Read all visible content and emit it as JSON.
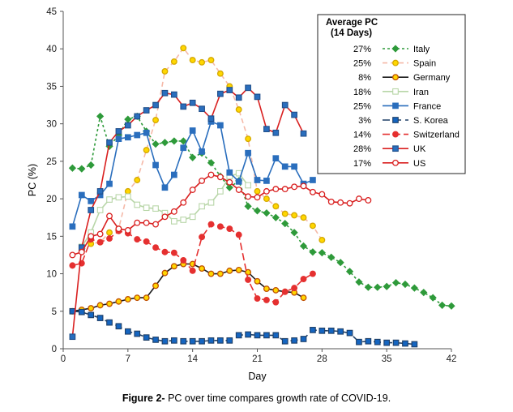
{
  "caption": {
    "label": "Figure 2-",
    "text": " PC over time compares growth rate of COVID-19."
  },
  "chart_data": {
    "type": "line",
    "xlabel": "Day",
    "ylabel": "PC (%)",
    "xlim": [
      0,
      42
    ],
    "ylim": [
      0,
      45
    ],
    "xticks": [
      0,
      7,
      14,
      21,
      28,
      35,
      42
    ],
    "yticks": [
      0,
      5,
      10,
      15,
      20,
      25,
      30,
      35,
      40,
      45
    ],
    "legend": {
      "title_line1": "Average PC",
      "title_line2": "(14 Days)",
      "position": "top-right"
    },
    "series": [
      {
        "name": "Italy",
        "avg": "27%",
        "color": "#2e9a3a",
        "fill": "#2e9a3a",
        "dash": "3,3",
        "marker": "diamond",
        "faded": false,
        "x": [
          1,
          2,
          3,
          4,
          5,
          6,
          7,
          8,
          9,
          10,
          11,
          12,
          13,
          14,
          15,
          16,
          17,
          18,
          19,
          20,
          21,
          22,
          23,
          24,
          25,
          26,
          27,
          28,
          29,
          30,
          31,
          32,
          33,
          34,
          35,
          36,
          37,
          38,
          39,
          40,
          41,
          42
        ],
        "y": [
          24.1,
          24.0,
          24.5,
          31.0,
          27.0,
          28.5,
          30.6,
          31.0,
          29.0,
          27.3,
          27.5,
          27.7,
          27.7,
          25.5,
          26.1,
          24.8,
          23.0,
          21.5,
          22.4,
          19.0,
          18.4,
          18.1,
          17.5,
          16.7,
          15.5,
          13.7,
          12.9,
          12.8,
          12.2,
          11.5,
          10.3,
          8.9,
          8.2,
          8.2,
          8.3,
          8.8,
          8.6,
          8.1,
          7.5,
          6.8,
          5.8,
          5.7
        ]
      },
      {
        "name": "Spain",
        "avg": "25%",
        "color": "#f5b9a8",
        "fill": "#ffd700",
        "dash": "6,4",
        "marker": "circle",
        "faded": false,
        "x": [
          2,
          3,
          4,
          5,
          6,
          7,
          8,
          9,
          10,
          11,
          12,
          13,
          14,
          15,
          16,
          17,
          18,
          19,
          20,
          21,
          22,
          23,
          24,
          25,
          26,
          27,
          28
        ],
        "y": [
          13.0,
          14.0,
          14.2,
          15.5,
          16.0,
          21.0,
          22.5,
          26.5,
          30.5,
          37.0,
          38.3,
          40.1,
          38.5,
          38.2,
          38.5,
          36.7,
          35.0,
          31.9,
          28.0,
          21.0,
          20.0,
          19.0,
          18.0,
          17.8,
          17.5,
          16.4,
          14.5
        ]
      },
      {
        "name": "Germany",
        "avg": "8%",
        "color": "#1a1a1a",
        "fill": "#ffd700",
        "dash": "",
        "marker": "circle",
        "faded": false,
        "x": [
          1,
          2,
          3,
          4,
          5,
          6,
          7,
          8,
          9,
          10,
          11,
          12,
          13,
          14,
          15,
          16,
          17,
          18,
          19,
          20,
          21,
          22,
          23,
          24,
          25,
          26
        ],
        "y": [
          5.0,
          5.2,
          5.4,
          5.8,
          6.0,
          6.3,
          6.6,
          6.8,
          6.8,
          8.4,
          10.1,
          11.0,
          11.3,
          11.3,
          10.7,
          10.0,
          10.0,
          10.4,
          10.5,
          10.2,
          9.0,
          8.0,
          7.8,
          7.6,
          7.5,
          6.8
        ]
      },
      {
        "name": "Iran",
        "avg": "18%",
        "color": "#b8d6a8",
        "fill": "#ffffff",
        "dash": "",
        "marker": "square",
        "faded": true,
        "x": [
          2,
          3,
          4,
          5,
          6,
          7,
          8,
          9,
          10,
          11,
          12,
          13,
          14,
          15,
          16,
          17,
          18,
          19,
          20
        ],
        "y": [
          13.6,
          15.5,
          18.5,
          19.9,
          20.2,
          20.3,
          19.2,
          18.8,
          18.7,
          18.1,
          17.0,
          17.2,
          17.6,
          19.0,
          19.5,
          21.0,
          23.0,
          23.4,
          21.8
        ]
      },
      {
        "name": "France",
        "avg": "25%",
        "color": "#2a6ebd",
        "fill": "#2a6ebd",
        "dash": "",
        "marker": "square",
        "faded": false,
        "x": [
          1,
          2,
          3,
          4,
          5,
          6,
          7,
          8,
          9,
          10,
          11,
          12,
          13,
          14,
          15,
          16,
          17,
          18,
          19,
          20,
          21,
          22,
          23,
          24,
          25,
          26,
          27
        ],
        "y": [
          16.3,
          20.5,
          19.7,
          20.5,
          22.0,
          28.0,
          28.2,
          28.5,
          28.8,
          24.5,
          21.5,
          23.2,
          26.8,
          29.1,
          26.3,
          30.3,
          29.8,
          23.5,
          22.3,
          26.1,
          22.5,
          22.4,
          25.4,
          24.3,
          24.3,
          22.0,
          22.5
        ]
      },
      {
        "name": "S. Korea",
        "avg": "3%",
        "color": "#1f3f66",
        "fill": "#1565c0",
        "dash": "9,5",
        "marker": "square",
        "faded": false,
        "x": [
          1,
          2,
          3,
          4,
          5,
          6,
          7,
          8,
          9,
          10,
          11,
          12,
          13,
          14,
          15,
          16,
          17,
          18,
          19,
          20,
          21,
          22,
          23,
          24,
          25,
          26,
          27,
          28,
          29,
          30,
          31,
          32,
          33,
          34,
          35,
          36,
          37,
          38
        ],
        "y": [
          5.0,
          4.9,
          4.5,
          4.1,
          3.5,
          3.0,
          2.3,
          2.0,
          1.5,
          1.2,
          1.0,
          1.1,
          1.0,
          1.0,
          1.0,
          1.1,
          1.1,
          1.1,
          1.8,
          1.9,
          1.8,
          1.8,
          1.8,
          1.0,
          1.1,
          1.3,
          2.5,
          2.4,
          2.4,
          2.3,
          2.1,
          0.9,
          1.0,
          0.9,
          0.8,
          0.8,
          0.7,
          0.6
        ]
      },
      {
        "name": "Switzerland",
        "avg": "14%",
        "color": "#e53030",
        "fill": "#e53030",
        "dash": "9,4",
        "marker": "circle",
        "faded": false,
        "x": [
          1,
          2,
          3,
          4,
          5,
          6,
          7,
          8,
          9,
          10,
          11,
          12,
          13,
          14,
          15,
          16,
          17,
          18,
          19,
          20,
          21,
          22,
          23,
          24,
          25,
          26,
          27
        ],
        "y": [
          11.1,
          11.4,
          14.6,
          14.2,
          14.7,
          15.7,
          15.4,
          14.6,
          14.3,
          13.5,
          12.9,
          12.8,
          11.8,
          10.4,
          14.9,
          16.6,
          16.3,
          16.0,
          15.2,
          9.2,
          6.7,
          6.5,
          6.2,
          7.6,
          8.1,
          9.3,
          10.0
        ]
      },
      {
        "name": "UK",
        "avg": "28%",
        "color": "#d92020",
        "fill": "#2a6ebd",
        "dash": "",
        "marker": "square",
        "faded": false,
        "x": [
          1,
          2,
          3,
          4,
          5,
          6,
          7,
          8,
          9,
          10,
          11,
          12,
          13,
          14,
          15,
          16,
          17,
          18,
          19,
          20,
          21,
          22,
          23,
          24,
          25,
          26
        ],
        "y": [
          1.6,
          13.5,
          18.5,
          21.0,
          27.5,
          29.0,
          29.8,
          31.0,
          31.8,
          32.5,
          34.1,
          33.9,
          32.3,
          32.8,
          32.0,
          30.7,
          34.0,
          34.5,
          33.5,
          34.8,
          33.6,
          29.3,
          28.8,
          32.5,
          31.2,
          28.7
        ]
      },
      {
        "name": "US",
        "avg": "17%",
        "color": "#d92020",
        "fill": "#ffffff",
        "dash": "",
        "marker": "circle",
        "faded": false,
        "x": [
          1,
          2,
          3,
          4,
          5,
          6,
          7,
          8,
          9,
          10,
          11,
          12,
          13,
          14,
          15,
          16,
          17,
          18,
          19,
          20,
          21,
          22,
          23,
          24,
          25,
          26,
          27,
          28,
          29,
          30,
          31,
          32,
          33
        ],
        "y": [
          12.5,
          12.9,
          15.0,
          15.3,
          17.7,
          16.0,
          15.8,
          16.8,
          16.8,
          16.6,
          17.6,
          18.3,
          19.5,
          21.2,
          22.4,
          23.2,
          22.9,
          22.2,
          21.2,
          20.3,
          20.2,
          21.0,
          21.3,
          21.3,
          21.6,
          21.7,
          20.9,
          20.6,
          19.6,
          19.5,
          19.4,
          20.0,
          19.8
        ]
      }
    ]
  }
}
